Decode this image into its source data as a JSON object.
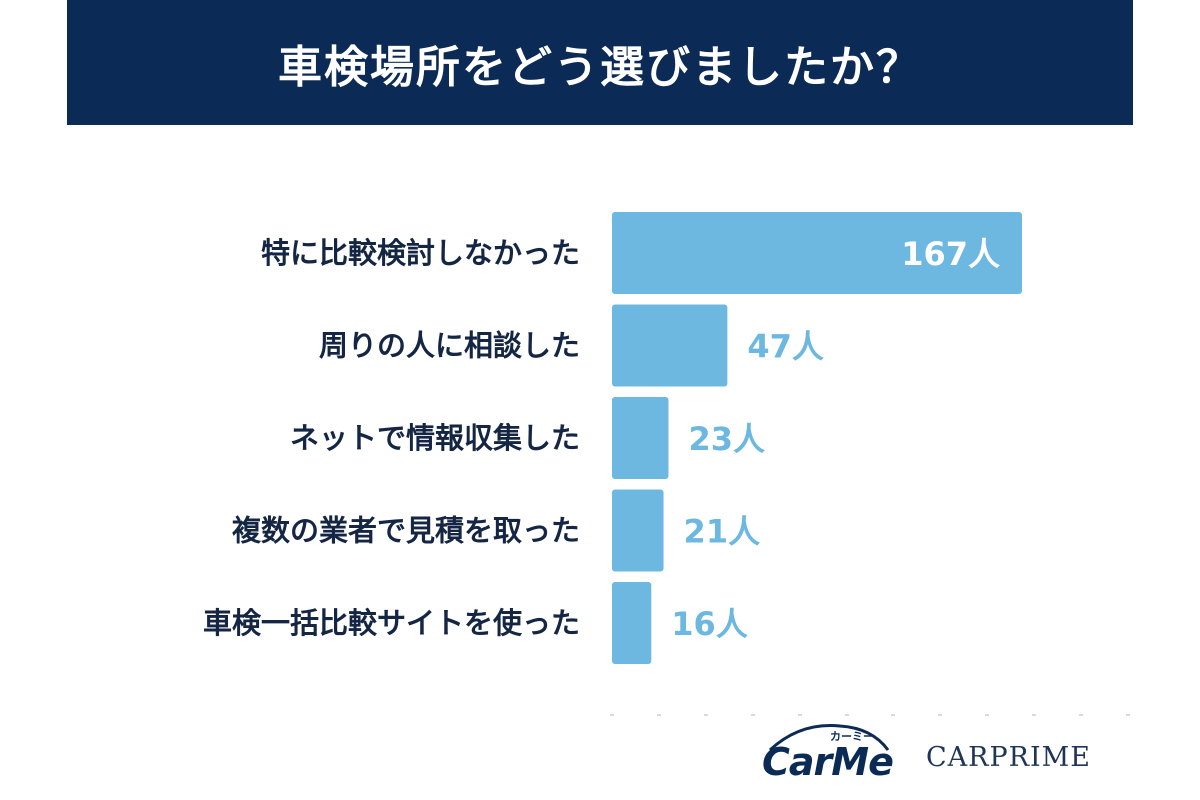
{
  "title": "車検場所をどう選びましたか？",
  "colors": {
    "header_bg": "#0b2a55",
    "bar": "#6cb8e0",
    "value_inside": "#ffffff",
    "value_outside": "#6cb8e0",
    "label": "#142644"
  },
  "chart_data": {
    "type": "bar",
    "orientation": "horizontal",
    "title": "車検場所をどう選びましたか？",
    "unit": "人",
    "categories": [
      "特に比較検討しなかった",
      "周りの人に相談した",
      "ネットで情報収集した",
      "複数の業者で見積を取った",
      "車検一括比較サイトを使った"
    ],
    "values": [
      167,
      47,
      23,
      21,
      16
    ],
    "value_labels": [
      "167人",
      "47人",
      "23人",
      "21人",
      "16人"
    ],
    "xlim": [
      0,
      167
    ],
    "grid": false,
    "legend": "none"
  },
  "logos": {
    "carme": {
      "word": "CarMe",
      "kana": "カーミー"
    },
    "carprime": "CARPRIME"
  }
}
